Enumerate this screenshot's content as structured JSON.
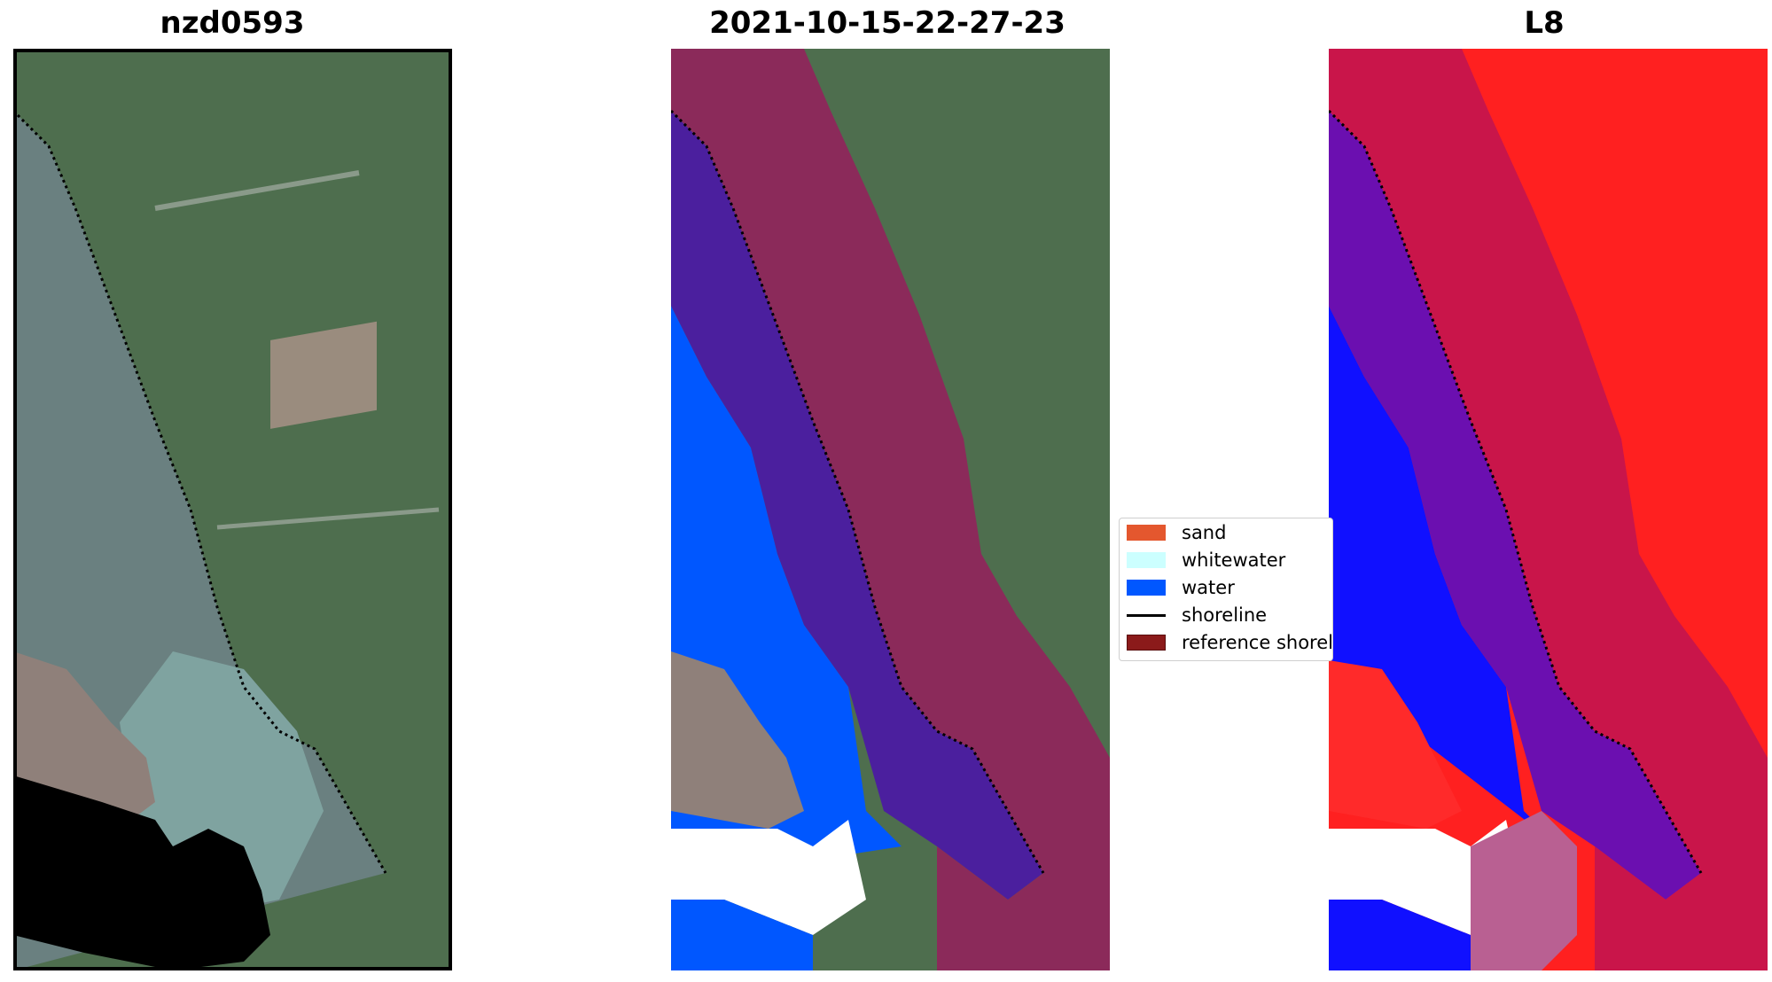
{
  "panels": [
    {
      "title": "nzd0593"
    },
    {
      "title": "2021-10-15-22-27-23"
    },
    {
      "title": "L8"
    }
  ],
  "legend": {
    "items": [
      {
        "label": "sand",
        "color": "#e4572e",
        "kind": "patch"
      },
      {
        "label": "whitewater",
        "color": "#ccffff",
        "kind": "patch"
      },
      {
        "label": "water",
        "color": "#0057ff",
        "kind": "patch"
      },
      {
        "label": "shoreline",
        "color": "#000000",
        "kind": "line"
      },
      {
        "label": "reference shoreline",
        "color": "#8b1a1a",
        "kind": "patch"
      }
    ]
  },
  "colors": {
    "water_overlay": "#0057ff",
    "sand_buffer": "#8b2a5a",
    "inner_buffer": "#4b1f9e",
    "index_red": "#ff2020",
    "index_blue": "#1010ff",
    "no_data": "#000000"
  }
}
